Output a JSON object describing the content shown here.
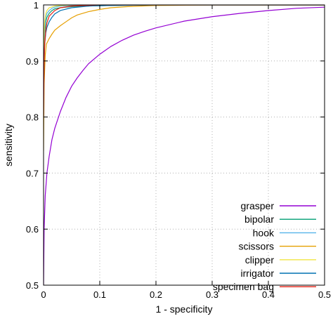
{
  "chart_data": {
    "type": "line",
    "title": "",
    "xlabel": "1 - specificity",
    "ylabel": "sensitivity",
    "xlim": [
      0,
      0.5
    ],
    "ylim": [
      0.5,
      1
    ],
    "x_ticks": [
      {
        "value": 0,
        "label": "0"
      },
      {
        "value": 0.1,
        "label": "0.1"
      },
      {
        "value": 0.2,
        "label": "0.2"
      },
      {
        "value": 0.3,
        "label": "0.3"
      },
      {
        "value": 0.4,
        "label": "0.4"
      },
      {
        "value": 0.5,
        "label": "0.5"
      }
    ],
    "y_ticks": [
      {
        "value": 0.5,
        "label": "0.5"
      },
      {
        "value": 0.6,
        "label": "0.6"
      },
      {
        "value": 0.7,
        "label": "0.7"
      },
      {
        "value": 0.8,
        "label": "0.8"
      },
      {
        "value": 0.9,
        "label": "0.9"
      },
      {
        "value": 1,
        "label": "1"
      }
    ],
    "grid": true,
    "grid_style": "dotted",
    "legend_position": "bottom-right",
    "series": [
      {
        "name": "grasper",
        "color": "#9400d3",
        "x": [
          0,
          0.001,
          0.003,
          0.006,
          0.01,
          0.015,
          0.02,
          0.03,
          0.04,
          0.05,
          0.06,
          0.07,
          0.08,
          0.1,
          0.12,
          0.14,
          0.16,
          0.18,
          0.2,
          0.25,
          0.3,
          0.35,
          0.4,
          0.45,
          0.5
        ],
        "y": [
          0.5,
          0.6,
          0.66,
          0.7,
          0.73,
          0.76,
          0.78,
          0.81,
          0.835,
          0.855,
          0.87,
          0.883,
          0.895,
          0.912,
          0.926,
          0.937,
          0.946,
          0.953,
          0.959,
          0.971,
          0.979,
          0.985,
          0.99,
          0.994,
          0.996
        ]
      },
      {
        "name": "bipolar",
        "color": "#009e73",
        "x": [
          0,
          0.001,
          0.002,
          0.004,
          0.006,
          0.01,
          0.015,
          0.02,
          0.03,
          0.05,
          0.08,
          0.12,
          0.2,
          0.3,
          0.5
        ],
        "y": [
          0.83,
          0.92,
          0.95,
          0.97,
          0.978,
          0.985,
          0.99,
          0.993,
          0.995,
          0.997,
          0.998,
          0.999,
          1,
          1,
          1
        ]
      },
      {
        "name": "hook",
        "color": "#56b4e9",
        "x": [
          0,
          0.001,
          0.002,
          0.004,
          0.006,
          0.01,
          0.015,
          0.02,
          0.03,
          0.05,
          0.08,
          0.12,
          0.2,
          0.3,
          0.5
        ],
        "y": [
          0.82,
          0.93,
          0.96,
          0.978,
          0.985,
          0.99,
          0.994,
          0.996,
          0.998,
          0.999,
          1,
          1,
          1,
          1,
          1
        ]
      },
      {
        "name": "scissors",
        "color": "#e69f00",
        "x": [
          0,
          0.001,
          0.003,
          0.005,
          0.01,
          0.015,
          0.02,
          0.03,
          0.04,
          0.05,
          0.06,
          0.08,
          0.1,
          0.12,
          0.15,
          0.2,
          0.3,
          0.5
        ],
        "y": [
          0.74,
          0.86,
          0.91,
          0.93,
          0.94,
          0.948,
          0.955,
          0.963,
          0.97,
          0.977,
          0.982,
          0.988,
          0.992,
          0.995,
          0.997,
          0.999,
          1,
          1
        ]
      },
      {
        "name": "clipper",
        "color": "#f0e442",
        "x": [
          0,
          0.001,
          0.002,
          0.004,
          0.006,
          0.01,
          0.02,
          0.03,
          0.05,
          0.1,
          0.2,
          0.5
        ],
        "y": [
          0.88,
          0.95,
          0.97,
          0.985,
          0.99,
          0.995,
          0.998,
          0.999,
          1,
          1,
          1,
          1
        ]
      },
      {
        "name": "irrigator",
        "color": "#0072b2",
        "x": [
          0,
          0.001,
          0.002,
          0.004,
          0.006,
          0.01,
          0.015,
          0.02,
          0.03,
          0.05,
          0.08,
          0.12,
          0.2,
          0.3,
          0.5
        ],
        "y": [
          0.84,
          0.9,
          0.93,
          0.95,
          0.96,
          0.97,
          0.978,
          0.984,
          0.99,
          0.995,
          0.998,
          0.999,
          1,
          1,
          1
        ]
      },
      {
        "name": "specimen bag",
        "color": "#e51e10",
        "x": [
          0,
          0.001,
          0.002,
          0.004,
          0.006,
          0.01,
          0.02,
          0.03,
          0.05,
          0.1,
          0.2,
          0.5
        ],
        "y": [
          0.8,
          0.9,
          0.93,
          0.955,
          0.968,
          0.98,
          0.99,
          0.995,
          0.998,
          1,
          1,
          1
        ]
      }
    ]
  }
}
